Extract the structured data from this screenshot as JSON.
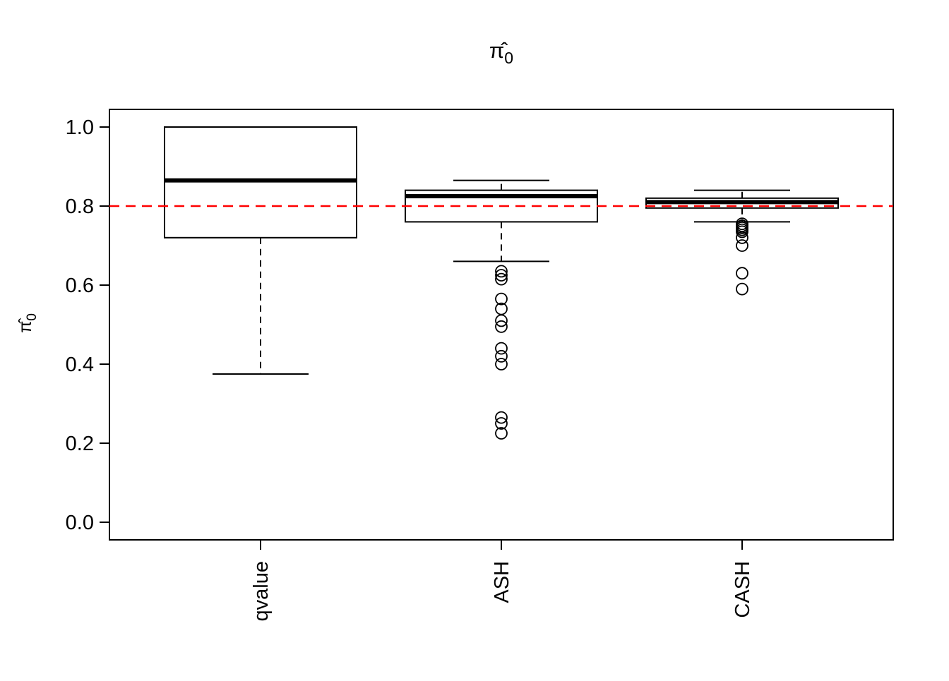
{
  "chart_data": {
    "type": "boxplot",
    "title": {
      "symbol": "π̂",
      "subscript": "0"
    },
    "ylabel": {
      "symbol": "π̂",
      "subscript": "0"
    },
    "xlabel": "",
    "categories": [
      "qvalue",
      "ASH",
      "CASH"
    ],
    "ylim": [
      0.0,
      1.0
    ],
    "yticks": [
      0.0,
      0.2,
      0.4,
      0.6,
      0.8,
      1.0
    ],
    "grid": false,
    "legend": "none",
    "reference_line": {
      "y": 0.8,
      "color": "#FF0000",
      "style": "dashed"
    },
    "boxes": [
      {
        "label": "qvalue",
        "whisker_low": 0.375,
        "q1": 0.72,
        "median": 0.865,
        "q3": 1.0,
        "whisker_high": 1.0,
        "outliers": []
      },
      {
        "label": "ASH",
        "whisker_low": 0.66,
        "q1": 0.76,
        "median": 0.825,
        "q3": 0.84,
        "whisker_high": 0.865,
        "outliers": [
          0.635,
          0.625,
          0.615,
          0.565,
          0.54,
          0.51,
          0.495,
          0.44,
          0.42,
          0.4,
          0.265,
          0.25,
          0.225
        ]
      },
      {
        "label": "CASH",
        "whisker_low": 0.76,
        "q1": 0.795,
        "median": 0.81,
        "q3": 0.82,
        "whisker_high": 0.84,
        "outliers": [
          0.755,
          0.75,
          0.745,
          0.74,
          0.735,
          0.72,
          0.7,
          0.63,
          0.59
        ]
      }
    ],
    "colors": {
      "box_stroke": "#000000",
      "box_fill": "#FFFFFF",
      "reference": "#FF0000",
      "background": "#FFFFFF"
    }
  }
}
